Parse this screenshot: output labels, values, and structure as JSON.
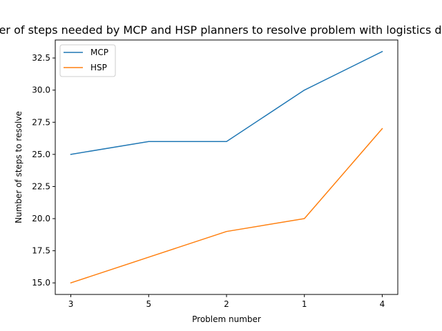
{
  "chart_data": {
    "type": "line",
    "title": "Number of steps needed by MCP and HSP planners to resolve problem with logistics domain",
    "xlabel": "Problem number",
    "ylabel": "Number of steps to resolve",
    "categories": [
      "3",
      "5",
      "2",
      "1",
      "4"
    ],
    "series": [
      {
        "name": "MCP",
        "values": [
          25,
          26,
          26,
          30,
          33
        ],
        "color": "#1f77b4"
      },
      {
        "name": "HSP",
        "values": [
          15,
          17,
          19,
          20,
          27
        ],
        "color": "#ff7f0e"
      }
    ],
    "ylim": [
      14.1,
      33.9
    ],
    "yticks": [
      "15.0",
      "17.5",
      "20.0",
      "22.5",
      "25.0",
      "27.5",
      "30.0",
      "32.5"
    ],
    "legend": "top-left",
    "grid": false
  }
}
